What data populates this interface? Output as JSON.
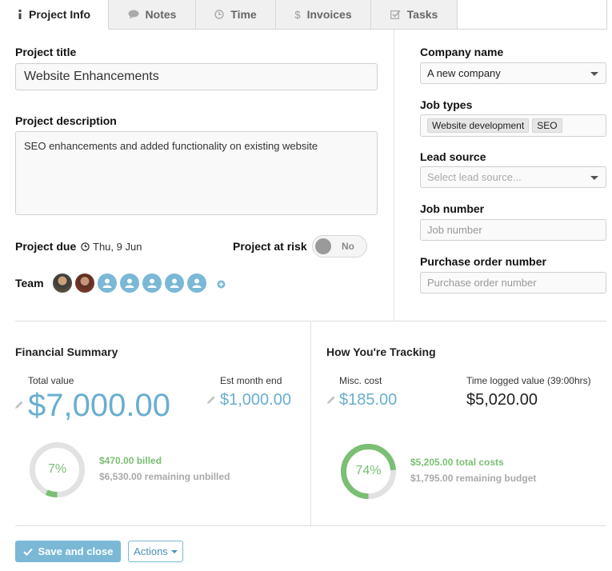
{
  "tabs": [
    {
      "label": "Project Info",
      "icon": "info-icon",
      "active": true
    },
    {
      "label": "Notes",
      "icon": "speech-bubble-icon"
    },
    {
      "label": "Time",
      "icon": "clock-icon"
    },
    {
      "label": "Invoices",
      "icon": "dollar-icon"
    },
    {
      "label": "Tasks",
      "icon": "checkbox-icon"
    }
  ],
  "project": {
    "title_label": "Project title",
    "title_value": "Website Enhancements",
    "description_label": "Project description",
    "description_value": "SEO enhancements and added functionality on existing website",
    "due_label": "Project due",
    "due_value": "Thu, 9 Jun",
    "at_risk_label": "Project at risk",
    "at_risk_toggle": "No",
    "team_label": "Team"
  },
  "sidebar": {
    "company_label": "Company name",
    "company_value": "A new company",
    "job_types_label": "Job types",
    "job_types": [
      "Website development",
      "SEO"
    ],
    "lead_source_label": "Lead source",
    "lead_source_placeholder": "Select lead source...",
    "job_number_label": "Job number",
    "job_number_placeholder": "Job number",
    "po_label": "Purchase order number",
    "po_placeholder": "Purchase order number"
  },
  "financial": {
    "title": "Financial Summary",
    "total_value_label": "Total value",
    "total_value": "$7,000.00",
    "est_month_end_label": "Est month end",
    "est_month_end": "$1,000.00",
    "percent": "7%",
    "percent_value": 7,
    "billed": "$470.00 billed",
    "remaining": "$6,530.00 remaining unbilled"
  },
  "tracking": {
    "title": "How You're Tracking",
    "misc_cost_label": "Misc. cost",
    "misc_cost": "$185.00",
    "time_logged_label": "Time logged value (39:00hrs)",
    "time_logged": "$5,020.00",
    "percent": "74%",
    "percent_value": 74,
    "total_costs": "$5,205.00 total costs",
    "remaining_budget": "$1,795.00 remaining budget"
  },
  "footer": {
    "save_label": "Save and close",
    "actions_label": "Actions"
  },
  "colors": {
    "accent": "#7ab8d6",
    "money": "#6aaecf",
    "success": "#7bbf74"
  }
}
